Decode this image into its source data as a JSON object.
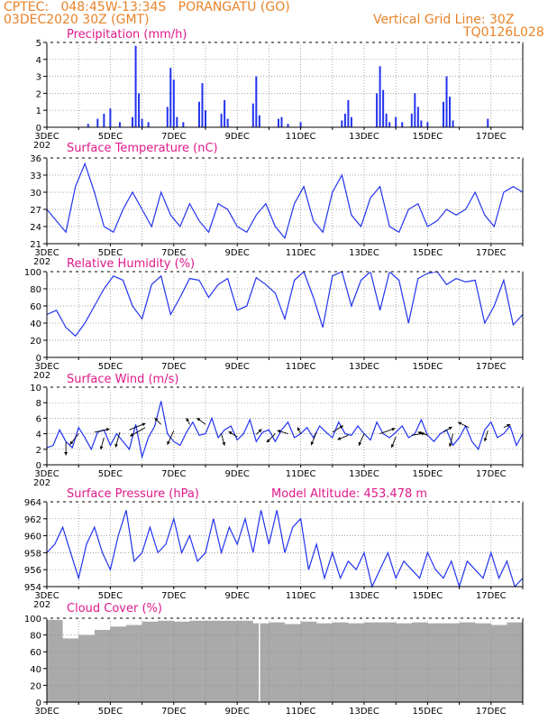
{
  "header": {
    "line1_left": "CPTEC:   048:45W-13:34S   PORANGATU (GO)",
    "line2_left": "03DEC2020 30Z (GMT)",
    "line1_right": "Vertical Grid Line: 30Z",
    "line2_right": "TQ0126L028"
  },
  "x_axis": {
    "tick_labels": [
      "3DEC",
      "5DEC",
      "7DEC",
      "9DEC",
      "11DEC",
      "13DEC",
      "15DEC",
      "17DEC"
    ],
    "year_fragment": "202"
  },
  "chart_data": [
    {
      "type": "bar",
      "title": "Precipitation (mm/h)",
      "ylim": [
        0,
        5
      ],
      "yticks": [
        0,
        1,
        2,
        3,
        4,
        5
      ],
      "color": "#2233ee",
      "grid": true,
      "x": [
        4.3,
        4.6,
        4.8,
        5.0,
        5.3,
        5.7,
        5.8,
        5.9,
        6.0,
        6.2,
        6.8,
        6.9,
        7.0,
        7.1,
        7.3,
        7.8,
        7.9,
        8.0,
        8.5,
        8.6,
        8.7,
        9.5,
        9.6,
        9.7,
        10.3,
        10.4,
        10.6,
        11.0,
        12.3,
        12.4,
        12.5,
        12.6,
        13.4,
        13.5,
        13.6,
        13.7,
        13.8,
        14.0,
        14.2,
        14.5,
        14.6,
        14.7,
        14.8,
        15.0,
        15.5,
        15.6,
        15.7,
        15.8,
        16.9
      ],
      "values": [
        0.2,
        0.5,
        0.8,
        1.1,
        0.3,
        0.6,
        4.8,
        2.0,
        0.5,
        0.3,
        1.2,
        3.5,
        2.8,
        0.6,
        0.3,
        1.5,
        2.6,
        1.0,
        0.8,
        1.6,
        0.5,
        1.4,
        3.0,
        0.7,
        0.5,
        0.6,
        0.2,
        0.3,
        0.4,
        0.8,
        1.6,
        0.6,
        2.0,
        3.6,
        2.2,
        0.8,
        0.3,
        0.6,
        0.3,
        0.8,
        2.0,
        1.2,
        0.4,
        0.3,
        1.5,
        3.0,
        1.8,
        0.4,
        0.5
      ]
    },
    {
      "type": "line",
      "title": "Surface Temperature (nC)",
      "ylim": [
        21,
        36
      ],
      "yticks": [
        21,
        24,
        27,
        30,
        33,
        36
      ],
      "color": "#2233ee",
      "grid": true,
      "x": [
        3.0,
        3.3,
        3.6,
        3.9,
        4.2,
        4.5,
        4.8,
        5.1,
        5.4,
        5.7,
        6.0,
        6.3,
        6.6,
        6.9,
        7.2,
        7.5,
        7.8,
        8.1,
        8.4,
        8.7,
        9.0,
        9.3,
        9.6,
        9.9,
        10.2,
        10.5,
        10.8,
        11.1,
        11.4,
        11.7,
        12.0,
        12.3,
        12.6,
        12.9,
        13.2,
        13.5,
        13.8,
        14.1,
        14.4,
        14.7,
        15.0,
        15.3,
        15.6,
        15.9,
        16.2,
        16.5,
        16.8,
        17.1,
        17.4,
        17.7,
        18.0
      ],
      "values": [
        27,
        25,
        23,
        31,
        35,
        30,
        24,
        23,
        27,
        30,
        27,
        24,
        30,
        26,
        24,
        28,
        25,
        23,
        28,
        27,
        24,
        23,
        26,
        28,
        24,
        22,
        28,
        31,
        25,
        23,
        30,
        33,
        26,
        24,
        29,
        31,
        24,
        23,
        27,
        28,
        24,
        25,
        27,
        26,
        27,
        30,
        26,
        24,
        30,
        31,
        30
      ]
    },
    {
      "type": "line",
      "title": "Relative Humidity (%)",
      "ylim": [
        0,
        100
      ],
      "yticks": [
        0,
        20,
        40,
        60,
        80,
        100
      ],
      "color": "#2233ee",
      "grid": true,
      "x": [
        3.0,
        3.3,
        3.6,
        3.9,
        4.2,
        4.5,
        4.8,
        5.1,
        5.4,
        5.7,
        6.0,
        6.3,
        6.6,
        6.9,
        7.2,
        7.5,
        7.8,
        8.1,
        8.4,
        8.7,
        9.0,
        9.3,
        9.6,
        9.9,
        10.2,
        10.5,
        10.8,
        11.1,
        11.4,
        11.7,
        12.0,
        12.3,
        12.6,
        12.9,
        13.2,
        13.5,
        13.8,
        14.1,
        14.4,
        14.7,
        15.0,
        15.3,
        15.6,
        15.9,
        16.2,
        16.5,
        16.8,
        17.1,
        17.4,
        17.7,
        18.0
      ],
      "values": [
        50,
        55,
        35,
        25,
        40,
        60,
        80,
        95,
        90,
        60,
        45,
        85,
        95,
        50,
        70,
        92,
        90,
        70,
        85,
        92,
        55,
        60,
        93,
        85,
        75,
        45,
        90,
        100,
        70,
        35,
        95,
        100,
        60,
        90,
        100,
        55,
        100,
        90,
        40,
        92,
        98,
        100,
        85,
        92,
        88,
        90,
        40,
        60,
        90,
        38,
        50
      ]
    },
    {
      "type": "line",
      "title": "Surface Wind (m/s)",
      "ylim": [
        0,
        10
      ],
      "yticks": [
        0,
        2,
        4,
        6,
        8,
        10
      ],
      "color": "#2233ee",
      "grid": true,
      "x": [
        3.0,
        3.2,
        3.4,
        3.6,
        3.8,
        4.0,
        4.2,
        4.4,
        4.6,
        4.8,
        5.0,
        5.2,
        5.4,
        5.6,
        5.8,
        6.0,
        6.2,
        6.4,
        6.6,
        6.8,
        7.0,
        7.2,
        7.4,
        7.6,
        7.8,
        8.0,
        8.2,
        8.4,
        8.6,
        8.8,
        9.0,
        9.2,
        9.4,
        9.6,
        9.8,
        10.0,
        10.2,
        10.4,
        10.6,
        10.8,
        11.0,
        11.2,
        11.4,
        11.6,
        11.8,
        12.0,
        12.2,
        12.4,
        12.6,
        12.8,
        13.0,
        13.2,
        13.4,
        13.6,
        13.8,
        14.0,
        14.2,
        14.4,
        14.6,
        14.8,
        15.0,
        15.2,
        15.4,
        15.6,
        15.8,
        16.0,
        16.2,
        16.4,
        16.6,
        16.8,
        17.0,
        17.2,
        17.4,
        17.6,
        17.8,
        18.0
      ],
      "values": [
        2.2,
        2.5,
        4.5,
        3.0,
        2.2,
        4.8,
        3.5,
        2.0,
        4.2,
        4.5,
        2.5,
        4.0,
        3.0,
        2.0,
        5.2,
        1.0,
        3.5,
        5.0,
        8.2,
        4.0,
        3.0,
        2.5,
        4.2,
        5.5,
        3.8,
        4.0,
        6.0,
        3.5,
        4.5,
        5.0,
        3.2,
        4.0,
        5.8,
        3.0,
        4.2,
        4.5,
        3.0,
        4.5,
        5.5,
        3.5,
        4.0,
        4.8,
        3.5,
        5.0,
        4.2,
        3.5,
        5.5,
        4.0,
        3.8,
        5.0,
        4.0,
        3.2,
        5.5,
        4.0,
        3.5,
        4.2,
        5.0,
        3.5,
        4.0,
        5.8,
        3.8,
        3.0,
        4.0,
        4.5,
        2.5,
        3.5,
        5.0,
        3.0,
        2.0,
        4.5,
        5.5,
        3.5,
        4.0,
        5.0,
        2.5,
        4.0
      ],
      "arrows": [
        {
          "x": 3.6,
          "y": 2.9,
          "u": 0.0,
          "v": -1.2
        },
        {
          "x": 4.0,
          "y": 4.0,
          "u": -0.8,
          "v": -1.0
        },
        {
          "x": 4.5,
          "y": 4.2,
          "u": 1.4,
          "v": 0.3
        },
        {
          "x": 4.8,
          "y": 3.5,
          "u": -0.3,
          "v": -1.1
        },
        {
          "x": 5.3,
          "y": 4.2,
          "u": -0.4,
          "v": -1.4
        },
        {
          "x": 5.6,
          "y": 4.5,
          "u": 1.5,
          "v": 0.6
        },
        {
          "x": 6.1,
          "y": 4.8,
          "u": -1.4,
          "v": -0.8
        },
        {
          "x": 6.6,
          "y": 5.2,
          "u": -0.6,
          "v": 0.6
        },
        {
          "x": 7.0,
          "y": 4.4,
          "u": -0.6,
          "v": -1.3
        },
        {
          "x": 7.5,
          "y": 5.2,
          "u": -0.3,
          "v": 0.6
        },
        {
          "x": 8.0,
          "y": 5.2,
          "u": -0.8,
          "v": 0.6
        },
        {
          "x": 8.5,
          "y": 4.0,
          "u": 0.3,
          "v": -1.1
        },
        {
          "x": 9.0,
          "y": 3.6,
          "u": -0.8,
          "v": 0.5
        },
        {
          "x": 9.6,
          "y": 3.9,
          "u": 0.5,
          "v": 0.5
        },
        {
          "x": 10.2,
          "y": 4.0,
          "u": -0.8,
          "v": -0.8
        },
        {
          "x": 10.6,
          "y": 4.0,
          "u": -1.0,
          "v": 0.3
        },
        {
          "x": 11.0,
          "y": 4.0,
          "u": -0.3,
          "v": 0.6
        },
        {
          "x": 11.5,
          "y": 4.2,
          "u": -0.5,
          "v": -1.2
        },
        {
          "x": 12.0,
          "y": 4.2,
          "u": 1.0,
          "v": 0.6
        },
        {
          "x": 12.5,
          "y": 3.8,
          "u": -1.0,
          "v": -0.4
        },
        {
          "x": 13.0,
          "y": 4.0,
          "u": -0.5,
          "v": -1.1
        },
        {
          "x": 13.5,
          "y": 4.0,
          "u": 1.4,
          "v": 0.5
        },
        {
          "x": 14.0,
          "y": 3.6,
          "u": -0.4,
          "v": -1.0
        },
        {
          "x": 14.5,
          "y": 3.8,
          "u": 1.2,
          "v": 0.2
        },
        {
          "x": 15.0,
          "y": 3.8,
          "u": -0.9,
          "v": 0.3
        },
        {
          "x": 15.5,
          "y": 4.2,
          "u": 0.8,
          "v": 0.5
        },
        {
          "x": 15.8,
          "y": 4.0,
          "u": -0.3,
          "v": -1.2
        },
        {
          "x": 16.3,
          "y": 4.8,
          "u": -1.0,
          "v": 0.5
        },
        {
          "x": 16.9,
          "y": 4.4,
          "u": -0.3,
          "v": -1.0
        },
        {
          "x": 17.4,
          "y": 4.8,
          "u": 0.6,
          "v": 0.3
        }
      ]
    },
    {
      "type": "line",
      "title": "Surface Pressure (hPa)",
      "annotation": "Model Altitude: 453.478  m",
      "ylim": [
        954,
        964
      ],
      "yticks": [
        954,
        956,
        958,
        960,
        962,
        964
      ],
      "color": "#2233ee",
      "grid": true,
      "x": [
        3.0,
        3.25,
        3.5,
        3.75,
        4.0,
        4.25,
        4.5,
        4.75,
        5.0,
        5.25,
        5.5,
        5.75,
        6.0,
        6.25,
        6.5,
        6.75,
        7.0,
        7.25,
        7.5,
        7.75,
        8.0,
        8.25,
        8.5,
        8.75,
        9.0,
        9.25,
        9.5,
        9.75,
        10.0,
        10.25,
        10.5,
        10.75,
        11.0,
        11.25,
        11.5,
        11.75,
        12.0,
        12.25,
        12.5,
        12.75,
        13.0,
        13.25,
        13.5,
        13.75,
        14.0,
        14.25,
        14.5,
        14.75,
        15.0,
        15.25,
        15.5,
        15.75,
        16.0,
        16.25,
        16.5,
        16.75,
        17.0,
        17.25,
        17.5,
        17.75,
        18.0
      ],
      "values": [
        958,
        959,
        961,
        958,
        955,
        959,
        961,
        958,
        956,
        960,
        963,
        957,
        958,
        961,
        958,
        959,
        962,
        958,
        960,
        957,
        958,
        962,
        958,
        961,
        959,
        962,
        958,
        963,
        959,
        963,
        958,
        961,
        962,
        956,
        959,
        955,
        958,
        955,
        957,
        956,
        958,
        954,
        956,
        958,
        955,
        957,
        956,
        955,
        958,
        956,
        955,
        957,
        954,
        957,
        956,
        955,
        958,
        955,
        957,
        954,
        955
      ]
    },
    {
      "type": "area",
      "title": "Cloud Cover (%)",
      "ylim": [
        0,
        100
      ],
      "yticks": [
        0,
        20,
        40,
        60,
        80,
        100
      ],
      "color": "#aaaaaa",
      "grid": true,
      "x": [
        3.0,
        3.5,
        4.0,
        4.5,
        5.0,
        5.5,
        6.0,
        6.5,
        7.0,
        7.5,
        8.0,
        8.5,
        9.0,
        9.5,
        10.0,
        10.5,
        11.0,
        11.5,
        12.0,
        12.5,
        13.0,
        13.5,
        14.0,
        14.5,
        15.0,
        15.5,
        16.0,
        16.5,
        17.0,
        17.5,
        18.0
      ],
      "values": [
        98,
        76,
        80,
        86,
        90,
        92,
        96,
        97,
        96,
        97,
        97,
        97,
        97,
        94,
        95,
        93,
        96,
        94,
        95,
        94,
        95,
        95,
        94,
        95,
        94,
        94,
        95,
        94,
        92,
        95,
        95
      ]
    }
  ]
}
